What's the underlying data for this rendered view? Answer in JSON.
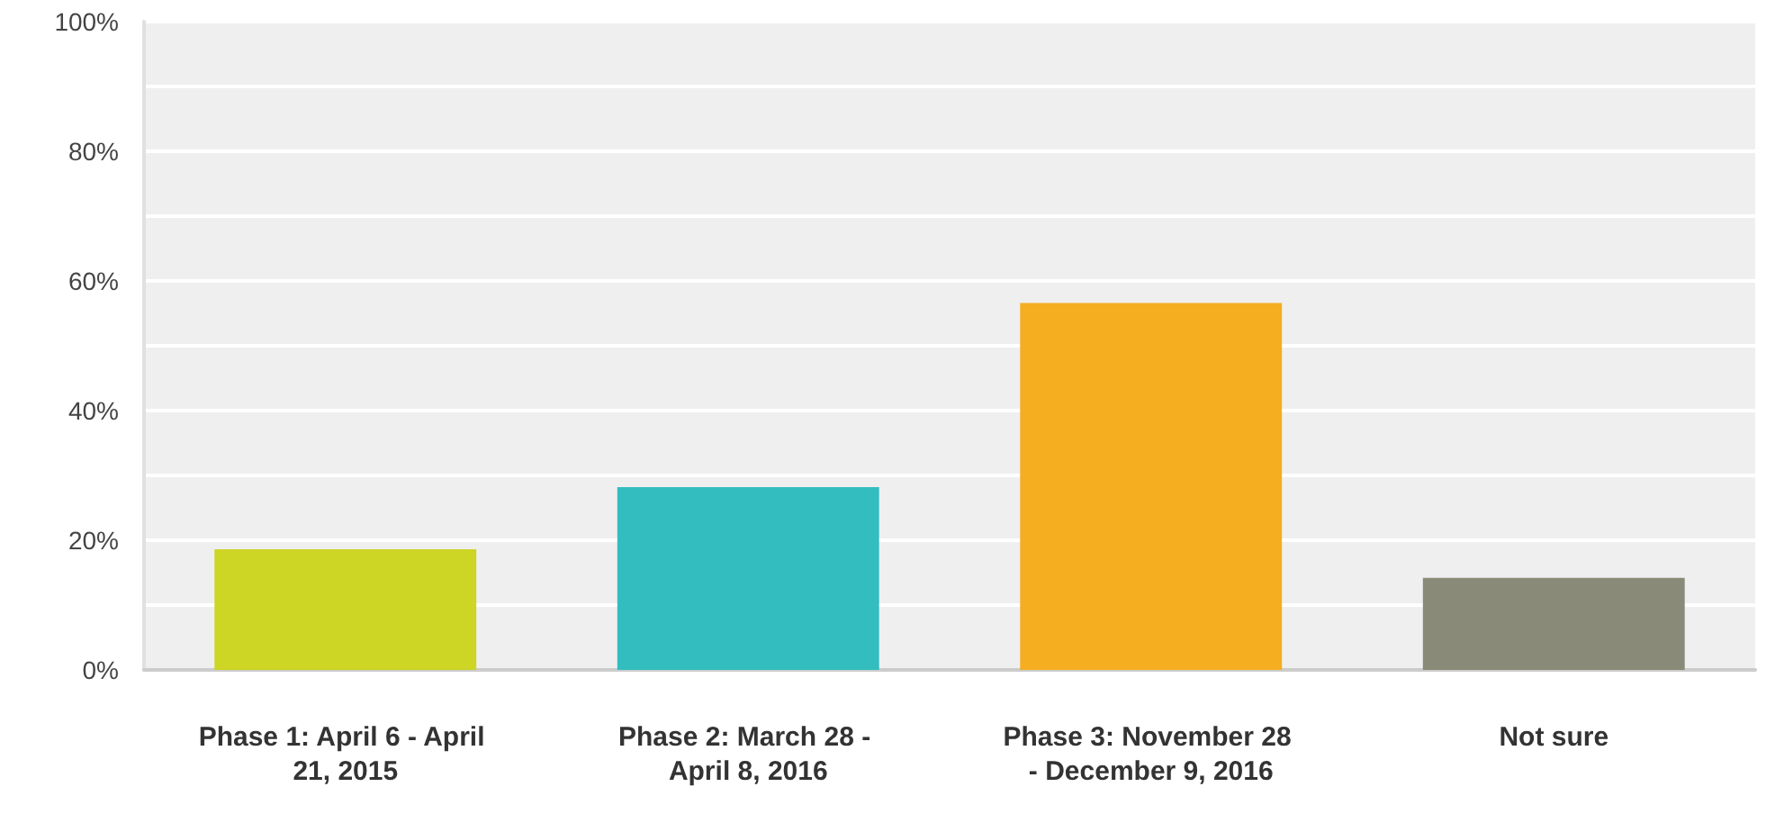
{
  "chart_data": {
    "type": "bar",
    "categories": [
      "Phase 1: April 6 - April 21, 2015",
      "Phase 2: March 28 - April 8, 2016",
      "Phase 3: November 28 - December 9, 2016",
      "Not sure"
    ],
    "values": [
      18.6,
      28.2,
      56.6,
      14.2
    ],
    "colors": [
      "#cdd525",
      "#33bdbf",
      "#f5ae20",
      "#8a8a78"
    ],
    "ylim": [
      0,
      100
    ],
    "yticks": [
      {
        "value": 0,
        "label": "0%"
      },
      {
        "value": 10,
        "label": null
      },
      {
        "value": 20,
        "label": "20%"
      },
      {
        "value": 30,
        "label": null
      },
      {
        "value": 40,
        "label": "40%"
      },
      {
        "value": 50,
        "label": null
      },
      {
        "value": 60,
        "label": "60%"
      },
      {
        "value": 70,
        "label": null
      },
      {
        "value": 80,
        "label": "80%"
      },
      {
        "value": 90,
        "label": null
      },
      {
        "value": 100,
        "label": "100%"
      }
    ],
    "grid": "y"
  }
}
